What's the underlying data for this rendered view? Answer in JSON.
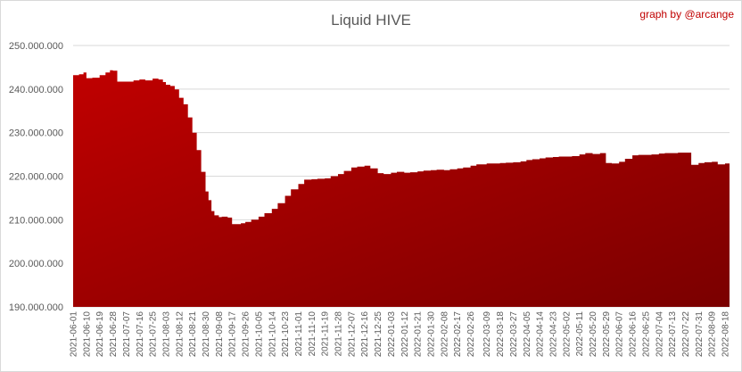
{
  "chart_data": {
    "type": "area",
    "title": "Liquid HIVE",
    "credit": "graph by @arcange",
    "ylim": [
      190000000,
      250000000
    ],
    "y_ticks": [
      "190.000.000",
      "200.000.000",
      "210.000.000",
      "220.000.000",
      "230.000.000",
      "240.000.000",
      "250.000.000"
    ],
    "y_tick_values": [
      190000000,
      200000000,
      210000000,
      220000000,
      230000000,
      240000000,
      250000000
    ],
    "grid": true,
    "legend": "none",
    "fill_color_top": "#c00000",
    "fill_color_bottom": "#7a0000",
    "x_tick_labels": [
      "2021-06-01",
      "2021-06-10",
      "2021-06-19",
      "2021-06-28",
      "2021-07-07",
      "2021-07-16",
      "2021-07-25",
      "2021-08-03",
      "2021-08-12",
      "2021-08-21",
      "2021-08-30",
      "2021-09-08",
      "2021-09-17",
      "2021-09-26",
      "2021-10-05",
      "2021-10-14",
      "2021-10-23",
      "2021-11-01",
      "2021-11-10",
      "2021-11-19",
      "2021-11-28",
      "2021-12-07",
      "2021-12-16",
      "2021-12-25",
      "2022-01-03",
      "2022-01-12",
      "2022-01-21",
      "2022-01-30",
      "2022-02-08",
      "2022-02-17",
      "2022-02-26",
      "2022-03-09",
      "2022-03-18",
      "2022-03-27",
      "2022-04-05",
      "2022-04-14",
      "2022-04-23",
      "2022-05-02",
      "2022-05-11",
      "2022-05-20",
      "2022-05-29",
      "2022-06-07",
      "2022-06-16",
      "2022-06-25",
      "2022-07-04",
      "2022-07-13",
      "2022-07-22",
      "2022-07-31",
      "2022-08-09",
      "2022-08-18"
    ],
    "series": [
      {
        "x": [
          "2021-06-01",
          "2021-06-05",
          "2021-06-08",
          "2021-06-10",
          "2021-06-14",
          "2021-06-19",
          "2021-06-23",
          "2021-06-26",
          "2021-06-28",
          "2021-07-01",
          "2021-07-07",
          "2021-07-12",
          "2021-07-16",
          "2021-07-20",
          "2021-07-25",
          "2021-07-29",
          "2021-08-01",
          "2021-08-03",
          "2021-08-06",
          "2021-08-09",
          "2021-08-12",
          "2021-08-15",
          "2021-08-18",
          "2021-08-21",
          "2021-08-24",
          "2021-08-27",
          "2021-08-30",
          "2021-09-01",
          "2021-09-03",
          "2021-09-05",
          "2021-09-08",
          "2021-09-10",
          "2021-09-14",
          "2021-09-17",
          "2021-09-20",
          "2021-09-23",
          "2021-09-26",
          "2021-09-30",
          "2021-10-05",
          "2021-10-09",
          "2021-10-14",
          "2021-10-18",
          "2021-10-23",
          "2021-10-27",
          "2021-11-01",
          "2021-11-05",
          "2021-11-10",
          "2021-11-14",
          "2021-11-19",
          "2021-11-23",
          "2021-11-28",
          "2021-12-02",
          "2021-12-07",
          "2021-12-11",
          "2021-12-16",
          "2021-12-20",
          "2021-12-25",
          "2021-12-29",
          "2022-01-03",
          "2022-01-07",
          "2022-01-12",
          "2022-01-16",
          "2022-01-21",
          "2022-01-25",
          "2022-01-30",
          "2022-02-03",
          "2022-02-08",
          "2022-02-12",
          "2022-02-17",
          "2022-02-21",
          "2022-02-26",
          "2022-03-02",
          "2022-03-09",
          "2022-03-13",
          "2022-03-18",
          "2022-03-22",
          "2022-03-27",
          "2022-04-01",
          "2022-04-05",
          "2022-04-09",
          "2022-04-14",
          "2022-04-18",
          "2022-04-23",
          "2022-04-27",
          "2022-05-02",
          "2022-05-06",
          "2022-05-11",
          "2022-05-15",
          "2022-05-20",
          "2022-05-25",
          "2022-05-29",
          "2022-06-02",
          "2022-06-07",
          "2022-06-11",
          "2022-06-16",
          "2022-06-20",
          "2022-06-25",
          "2022-06-29",
          "2022-07-04",
          "2022-07-08",
          "2022-07-13",
          "2022-07-17",
          "2022-07-22",
          "2022-07-26",
          "2022-07-31",
          "2022-08-04",
          "2022-08-09",
          "2022-08-13",
          "2022-08-18",
          "2022-08-21"
        ],
        "values": [
          243200000,
          243400000,
          243800000,
          242500000,
          242600000,
          243200000,
          243800000,
          244300000,
          244200000,
          241700000,
          241700000,
          242000000,
          242200000,
          242000000,
          242400000,
          242200000,
          241600000,
          241000000,
          240700000,
          239900000,
          238000000,
          236500000,
          233500000,
          230000000,
          226000000,
          221000000,
          216500000,
          214500000,
          212000000,
          211000000,
          210600000,
          210700000,
          210500000,
          209000000,
          209000000,
          209200000,
          209500000,
          210000000,
          210700000,
          211500000,
          212500000,
          213800000,
          215500000,
          217000000,
          218200000,
          219200000,
          219300000,
          219400000,
          219500000,
          220000000,
          220500000,
          221200000,
          222000000,
          222200000,
          222400000,
          221800000,
          220700000,
          220500000,
          220800000,
          221000000,
          220800000,
          220900000,
          221100000,
          221300000,
          221400000,
          221500000,
          221400000,
          221600000,
          221800000,
          222000000,
          222400000,
          222700000,
          222900000,
          222900000,
          223000000,
          223100000,
          223200000,
          223400000,
          223700000,
          223900000,
          224100000,
          224300000,
          224400000,
          224500000,
          224500000,
          224600000,
          225000000,
          225300000,
          225100000,
          225300000,
          223000000,
          222900000,
          223300000,
          224000000,
          224800000,
          224900000,
          224900000,
          225000000,
          225200000,
          225300000,
          225300000,
          225400000,
          225400000,
          222600000,
          223000000,
          223200000,
          223300000,
          222700000,
          222900000,
          222700000
        ]
      }
    ]
  }
}
